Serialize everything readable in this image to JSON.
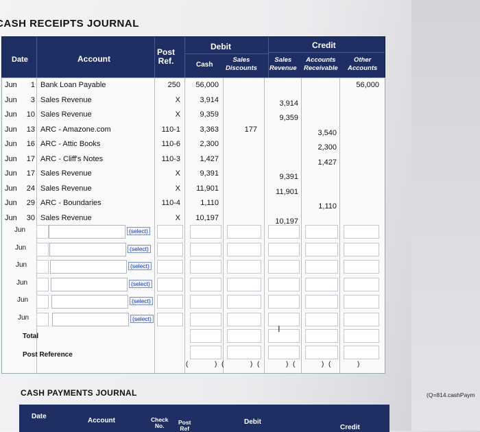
{
  "journal_title": "CASH RECEIPTS JOURNAL",
  "header": {
    "date": "Date",
    "account": "Account",
    "post_ref_line1": "Post",
    "post_ref_line2": "Ref.",
    "debit": "Debit",
    "credit": "Credit",
    "cash": "Cash",
    "sales_discounts_line1": "Sales",
    "sales_discounts_line2": "Discounts",
    "sales_revenue_line1": "Sales",
    "sales_revenue_line2": "Revenue",
    "ar_line1": "Accounts",
    "ar_line2": "Receivable",
    "other_line1": "Other",
    "other_line2": "Accounts"
  },
  "rows": [
    {
      "month": "Jun",
      "day": "1",
      "account": "Bank Loan Payable",
      "ref": "250",
      "cash": "56,000",
      "sales_disc": "",
      "sales_rev": "",
      "ar": "",
      "other": "56,000"
    },
    {
      "month": "Jun",
      "day": "3",
      "account": "Sales Revenue",
      "ref": "X",
      "cash": "3,914",
      "sales_disc": "",
      "sales_rev": "3,914",
      "ar": "",
      "other": ""
    },
    {
      "month": "Jun",
      "day": "10",
      "account": "Sales Revenue",
      "ref": "X",
      "cash": "9,359",
      "sales_disc": "",
      "sales_rev": "9,359",
      "ar": "",
      "other": ""
    },
    {
      "month": "Jun",
      "day": "13",
      "account": "ARC - Amazone.com",
      "ref": "110-1",
      "cash": "3,363",
      "sales_disc": "177",
      "sales_rev": "",
      "ar": "3,540",
      "other": ""
    },
    {
      "month": "Jun",
      "day": "16",
      "account": "ARC - Attic Books",
      "ref": "110-6",
      "cash": "2,300",
      "sales_disc": "",
      "sales_rev": "",
      "ar": "2,300",
      "other": ""
    },
    {
      "month": "Jun",
      "day": "17",
      "account": "ARC - Cliff's Notes",
      "ref": "110-3",
      "cash": "1,427",
      "sales_disc": "",
      "sales_rev": "",
      "ar": "1,427",
      "other": ""
    },
    {
      "month": "Jun",
      "day": "17",
      "account": "Sales Revenue",
      "ref": "X",
      "cash": "9,391",
      "sales_disc": "",
      "sales_rev": "9,391",
      "ar": "",
      "other": ""
    },
    {
      "month": "Jun",
      "day": "24",
      "account": "Sales Revenue",
      "ref": "X",
      "cash": "11,901",
      "sales_disc": "",
      "sales_rev": "11,901",
      "ar": "",
      "other": ""
    },
    {
      "month": "Jun",
      "day": "29",
      "account": "ARC - Boundaries",
      "ref": "110-4",
      "cash": "1,110",
      "sales_disc": "",
      "sales_rev": "",
      "ar": "1,110",
      "other": ""
    },
    {
      "month": "Jun",
      "day": "30",
      "account": "Sales Revenue",
      "ref": "X",
      "cash": "10,197",
      "sales_disc": "",
      "sales_rev": "10,197",
      "ar": "",
      "other": ""
    }
  ],
  "entry_rows": [
    {
      "month": "Jun",
      "select": "(select)"
    },
    {
      "month": "Jun",
      "select": "(select)"
    },
    {
      "month": "Jun",
      "select": "(select)"
    },
    {
      "month": "Jun",
      "select": "(select)"
    },
    {
      "month": "Jun",
      "select": "(select)"
    },
    {
      "month": "Jun",
      "select": "(select)"
    }
  ],
  "total_label": "Total",
  "post_reference_label": "Post Reference",
  "paren_open": "(",
  "paren_close": ")",
  "payments_title": "CASH PAYMENTS JOURNAL",
  "reference_note": "(Q=814.cashPaym",
  "payments_header": {
    "date": "Date",
    "account": "Account",
    "check_line1": "Check",
    "check_line2": "No.",
    "post_line1": "Post",
    "post_line2": "Ref",
    "debit": "Debit",
    "credit": "Credit"
  }
}
